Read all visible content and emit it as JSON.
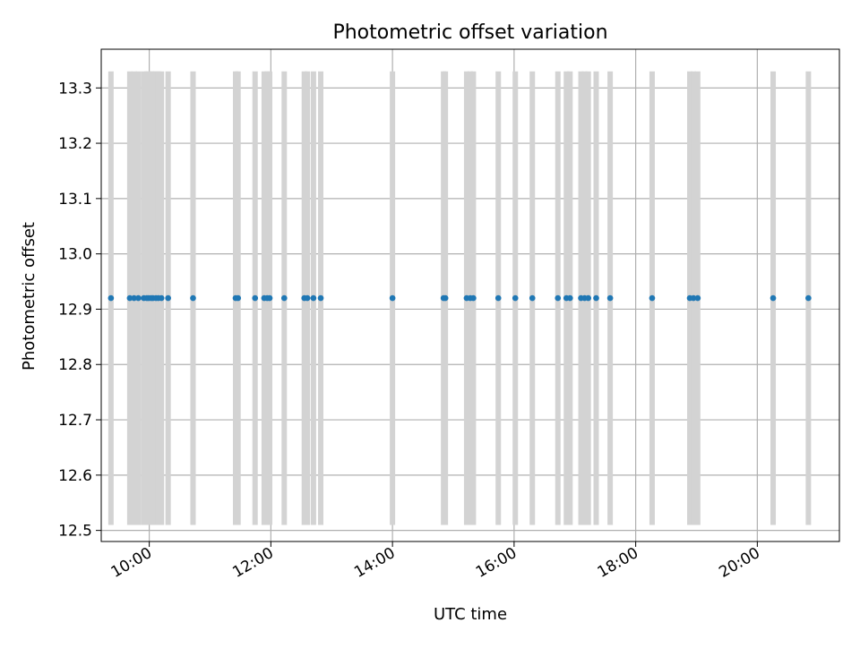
{
  "chart_data": {
    "type": "scatter",
    "title": "Photometric offset variation",
    "xlabel": "UTC time",
    "ylabel": "Photometric offset",
    "x_unit": "UTC hours",
    "xlim": [
      9.21,
      21.35
    ],
    "ylim": [
      12.48,
      13.37
    ],
    "x_ticks": [
      {
        "value": 10,
        "label": "10:00"
      },
      {
        "value": 12,
        "label": "12:00"
      },
      {
        "value": 14,
        "label": "14:00"
      },
      {
        "value": 16,
        "label": "16:00"
      },
      {
        "value": 18,
        "label": "18:00"
      },
      {
        "value": 20,
        "label": "20:00"
      }
    ],
    "y_ticks": [
      {
        "value": 12.5,
        "label": "12.5"
      },
      {
        "value": 12.6,
        "label": "12.6"
      },
      {
        "value": 12.7,
        "label": "12.7"
      },
      {
        "value": 12.8,
        "label": "12.8"
      },
      {
        "value": 12.9,
        "label": "12.9"
      },
      {
        "value": 13.0,
        "label": "13.0"
      },
      {
        "value": 13.1,
        "label": "13.1"
      },
      {
        "value": 13.2,
        "label": "13.2"
      },
      {
        "value": 13.3,
        "label": "13.3"
      }
    ],
    "grid": true,
    "errorbar_range": [
      12.51,
      13.33
    ],
    "series": [
      {
        "color": "#1f77b4",
        "errorbar_color": "#d3d3d3",
        "y": 12.92,
        "x": [
          9.37,
          9.68,
          9.75,
          9.82,
          9.91,
          9.96,
          9.99,
          10.03,
          10.06,
          10.11,
          10.15,
          10.2,
          10.31,
          10.72,
          11.42,
          11.46,
          11.74,
          11.89,
          11.94,
          11.98,
          12.22,
          12.55,
          12.6,
          12.7,
          12.82,
          14.0,
          14.84,
          14.87,
          15.22,
          15.28,
          15.33,
          15.74,
          16.02,
          16.3,
          16.72,
          16.86,
          16.92,
          17.1,
          17.16,
          17.22,
          17.35,
          17.58,
          18.27,
          18.89,
          18.95,
          19.02,
          20.26,
          20.84
        ]
      }
    ]
  }
}
